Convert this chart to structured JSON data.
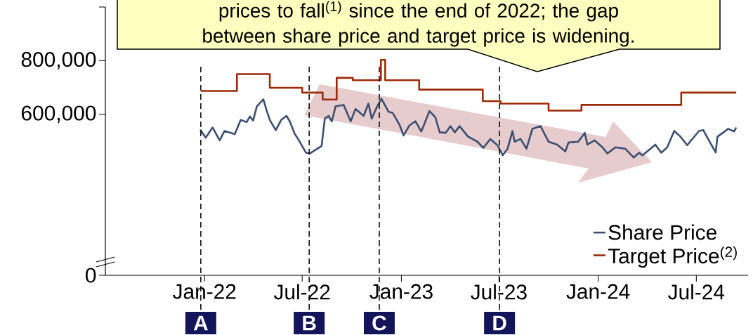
{
  "chart_data": {
    "type": "line",
    "annotations": [
      "prices to fall$^{(1)}$ since the end of 2022; the gap between share price and target price is widening."
    ],
    "xlim": [
      "2021-07-01",
      "2024-10-05"
    ],
    "xticks": [
      {
        "value": "2022-01-01",
        "label": "Jan-22"
      },
      {
        "value": "2022-07-01",
        "label": "Jul-22"
      },
      {
        "value": "2023-01-01",
        "label": "Jan-23"
      },
      {
        "value": "2023-07-01",
        "label": "Jul-23"
      },
      {
        "value": "2024-01-01",
        "label": "Jan-24"
      },
      {
        "value": "2024-07-01",
        "label": "Jul-24"
      }
    ],
    "ylim": [
      0,
      1000000
    ],
    "yticks": [
      0,
      {
        "value": 600000,
        "label": "600,000"
      },
      {
        "value": 800000,
        "label": "800,000"
      },
      {
        "value": 1000000,
        "label": null
      }
    ],
    "legend": "bottom right",
    "marker": "none",
    "line_style": "solid",
    "ref_lines": [
      {
        "axis": "x",
        "value": "2021-12-25",
        "label": "A",
        "color": "#000000",
        "line_style": "dashed"
      },
      {
        "axis": "x",
        "value": "2022-07-14",
        "label": "B",
        "color": "#000000",
        "line_style": "dashed"
      },
      {
        "axis": "x",
        "value": "2022-11-21",
        "label": "C",
        "color": "#000000",
        "line_style": "dashed"
      },
      {
        "axis": "x",
        "value": "2023-07-02",
        "label": "D",
        "color": "#000000",
        "line_style": "dashed"
      }
    ],
    "series": [
      {
        "name": "Share Price",
        "color": "#3d4f70",
        "x": [
          "2021-12-24",
          "2022-01-03",
          "2022-01-16",
          "2022-01-29",
          "2022-02-07",
          "2022-02-26",
          "2022-03-09",
          "2022-03-20",
          "2022-03-26",
          "2022-04-01",
          "2022-04-08",
          "2022-04-20",
          "2022-04-26",
          "2022-05-02",
          "2022-05-13",
          "2022-05-23",
          "2022-06-02",
          "2022-06-08",
          "2022-06-17",
          "2022-06-25",
          "2022-07-08",
          "2022-07-15",
          "2022-08-06",
          "2022-08-12",
          "2022-08-19",
          "2022-08-25",
          "2022-09-01",
          "2022-09-16",
          "2022-09-29",
          "2022-10-08",
          "2022-10-23",
          "2022-11-01",
          "2022-11-07",
          "2022-11-16",
          "2022-11-25",
          "2022-12-08",
          "2022-12-16",
          "2022-12-29",
          "2023-01-05",
          "2023-01-16",
          "2023-01-27",
          "2023-02-07",
          "2023-02-22",
          "2023-03-05",
          "2023-03-13",
          "2023-03-24",
          "2023-04-02",
          "2023-04-10",
          "2023-04-19",
          "2023-05-04",
          "2023-05-22",
          "2023-06-02",
          "2023-06-15",
          "2023-06-28",
          "2023-07-08",
          "2023-07-17",
          "2023-07-26",
          "2023-07-30",
          "2023-08-10",
          "2023-08-21",
          "2023-09-01",
          "2023-09-16",
          "2023-10-01",
          "2023-10-17",
          "2023-11-01",
          "2023-11-07",
          "2023-11-25",
          "2023-12-07",
          "2023-12-12",
          "2023-12-25",
          "2024-01-09",
          "2024-01-18",
          "2024-02-02",
          "2024-02-20",
          "2024-03-07",
          "2024-03-17",
          "2024-03-23",
          "2024-04-16",
          "2024-04-27",
          "2024-05-08",
          "2024-05-21",
          "2024-06-01",
          "2024-06-14",
          "2024-07-06",
          "2024-07-14",
          "2024-07-27",
          "2024-08-06",
          "2024-08-09",
          "2024-08-29",
          "2024-09-09",
          "2024-09-13"
        ],
        "values": [
          543000,
          513000,
          551000,
          503000,
          538000,
          526000,
          579000,
          571000,
          592000,
          577000,
          630000,
          656000,
          615000,
          579000,
          541000,
          579000,
          594000,
          574000,
          528000,
          503000,
          457000,
          454000,
          482000,
          584000,
          594000,
          574000,
          630000,
          635000,
          574000,
          620000,
          594000,
          640000,
          584000,
          625000,
          658000,
          610000,
          605000,
          559000,
          521000,
          559000,
          574000,
          536000,
          612000,
          589000,
          533000,
          531000,
          556000,
          533000,
          556000,
          518000,
          498000,
          475000,
          508000,
          485000,
          447000,
          472000,
          538000,
          498000,
          508000,
          472000,
          546000,
          556000,
          498000,
          487000,
          462000,
          495000,
          498000,
          531000,
          487000,
          503000,
          477000,
          454000,
          477000,
          472000,
          439000,
          457000,
          447000,
          487000,
          457000,
          477000,
          538000,
          518000,
          485000,
          538000,
          541000,
          493000,
          458000,
          516000,
          546000,
          536000,
          551000
        ]
      },
      {
        "name": "Target Price$^{(2)}$",
        "type": "step",
        "color": "#9a2a0a",
        "x": [
          "2021-12-25",
          "2022-03-02",
          "2022-05-02",
          "2022-07-01",
          "2022-08-08",
          "2022-09-03",
          "2022-10-03",
          "2022-11-24",
          "2022-12-02",
          "2023-02-03",
          "2023-06-01",
          "2023-07-04",
          "2023-10-01",
          "2023-12-01",
          "2024-06-03",
          "2024-09-13"
        ],
        "values": [
          687000,
          750000,
          699000,
          681000,
          655000,
          736000,
          727000,
          803000,
          727000,
          692000,
          649000,
          640000,
          614000,
          635000,
          681000,
          681000
        ]
      }
    ]
  }
}
